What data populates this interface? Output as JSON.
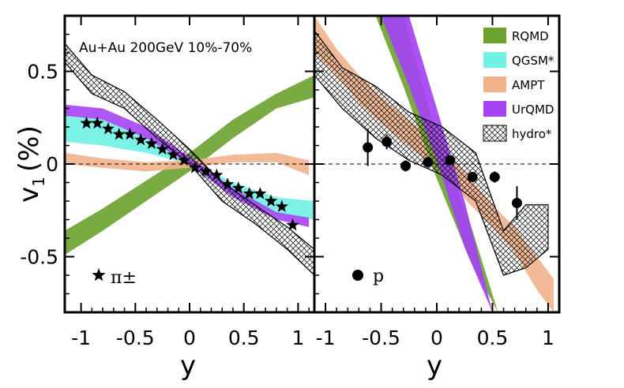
{
  "chart_data": [
    {
      "type": "line",
      "panel": "left",
      "annotation": "Au+Au 200GeV 10%-70%",
      "ylabel": "v",
      "ylabel_sub": "1",
      "ylabel_unit": "(%)",
      "xlabel": "y",
      "xlim": [
        -1.15,
        1.15
      ],
      "ylim": [
        -0.8,
        0.8
      ],
      "x_ticks": [
        "-1",
        "-0.5",
        "0",
        "0.5",
        "1"
      ],
      "y_ticks": [
        "0.5",
        "0",
        "-0.5"
      ],
      "marker_label": "π±",
      "series": [
        {
          "name": "RQMD",
          "kind": "band",
          "color": "#6aa22e",
          "x": [
            -1.15,
            -0.8,
            -0.4,
            0,
            0.4,
            0.8,
            1.15
          ],
          "lower": [
            -0.49,
            -0.36,
            -0.2,
            -0.04,
            0.14,
            0.3,
            0.36
          ],
          "upper": [
            -0.36,
            -0.24,
            -0.09,
            0.06,
            0.24,
            0.38,
            0.48
          ]
        },
        {
          "name": "QGSM*",
          "kind": "band",
          "color": "#6ff2e4",
          "x": [
            -1.15,
            -0.8,
            -0.4,
            0,
            0.4,
            0.8,
            1.15
          ],
          "lower": [
            0.12,
            0.1,
            0.06,
            0.0,
            -0.16,
            -0.27,
            -0.3
          ],
          "upper": [
            0.26,
            0.24,
            0.14,
            0.02,
            -0.1,
            -0.18,
            -0.2
          ]
        },
        {
          "name": "AMPT",
          "kind": "band",
          "color": "#f2b28c",
          "x": [
            -1.15,
            -0.8,
            -0.4,
            0,
            0.4,
            0.8,
            1.1
          ],
          "lower": [
            0.0,
            -0.02,
            -0.04,
            -0.02,
            0.01,
            0.01,
            -0.06
          ],
          "upper": [
            0.06,
            0.03,
            0.01,
            0.02,
            0.05,
            0.06,
            0.02
          ]
        },
        {
          "name": "UrQMD",
          "kind": "band",
          "color": "#a442f4",
          "x": [
            -1.15,
            -0.8,
            -0.4,
            0,
            0.4,
            0.8,
            1.1
          ],
          "lower": [
            0.26,
            0.24,
            0.14,
            0.0,
            -0.18,
            -0.3,
            -0.34
          ],
          "upper": [
            0.32,
            0.3,
            0.2,
            0.04,
            -0.13,
            -0.26,
            -0.29
          ]
        },
        {
          "name": "hydro*",
          "kind": "hatched",
          "color": "#000000",
          "x": [
            -1.15,
            -0.9,
            -0.6,
            -0.3,
            0,
            0.3,
            0.6,
            0.9,
            1.15
          ],
          "lower": [
            0.55,
            0.38,
            0.3,
            0.14,
            0.0,
            -0.2,
            -0.32,
            -0.46,
            -0.6
          ],
          "upper": [
            0.65,
            0.48,
            0.39,
            0.24,
            0.08,
            -0.1,
            -0.22,
            -0.34,
            -0.46
          ]
        },
        {
          "name": "pi",
          "kind": "stars",
          "color": "#000000",
          "x": [
            -0.95,
            -0.85,
            -0.75,
            -0.65,
            -0.55,
            -0.45,
            -0.35,
            -0.25,
            -0.15,
            -0.05,
            0.05,
            0.15,
            0.25,
            0.35,
            0.45,
            0.55,
            0.65,
            0.75,
            0.85,
            0.95
          ],
          "y": [
            0.22,
            0.22,
            0.19,
            0.16,
            0.16,
            0.13,
            0.11,
            0.08,
            0.05,
            0.02,
            -0.02,
            -0.04,
            -0.06,
            -0.11,
            -0.13,
            -0.16,
            -0.16,
            -0.2,
            -0.23,
            -0.33
          ]
        }
      ]
    },
    {
      "type": "line",
      "panel": "right",
      "xlabel": "y",
      "xlim": [
        -1.1,
        1.1
      ],
      "ylim": [
        -0.8,
        0.8
      ],
      "x_ticks": [
        "-1",
        "-0.5",
        "0",
        "0.5",
        "1"
      ],
      "legend": [
        "RQMD",
        "QGSM*",
        "AMPT",
        "UrQMD",
        "hydro*"
      ],
      "marker_label": "p",
      "series": [
        {
          "name": "AMPT",
          "kind": "band",
          "color": "#f2b28c",
          "x": [
            -1.1,
            -0.9,
            -0.7,
            -0.5,
            -0.3,
            -0.1,
            0.1,
            0.3,
            0.5,
            0.7,
            0.9,
            1.05
          ],
          "lower": [
            0.6,
            0.48,
            0.33,
            0.22,
            0.12,
            0.02,
            -0.08,
            -0.22,
            -0.34,
            -0.48,
            -0.68,
            -0.8
          ],
          "upper": [
            0.8,
            0.62,
            0.48,
            0.36,
            0.26,
            0.16,
            0.06,
            -0.08,
            -0.22,
            -0.34,
            -0.5,
            -0.62
          ]
        },
        {
          "name": "RQMD",
          "kind": "band",
          "color": "#6aa22e",
          "x": [
            -0.55,
            -0.3,
            0,
            0.3,
            0.55
          ],
          "lower": [
            0.8,
            0.42,
            -0.08,
            -0.52,
            -0.8
          ],
          "upper": [
            0.8,
            0.8,
            0.14,
            -0.32,
            -0.8
          ]
        },
        {
          "name": "UrQMD",
          "kind": "band",
          "color": "#a442f4",
          "x": [
            -0.5,
            -0.25,
            0,
            0.25,
            0.5
          ],
          "lower": [
            0.8,
            0.42,
            0.02,
            -0.45,
            -0.8
          ],
          "upper": [
            0.8,
            0.8,
            0.3,
            -0.2,
            -0.8
          ]
        },
        {
          "name": "hydro*",
          "kind": "hatched",
          "color": "#000000",
          "x": [
            -1.1,
            -0.85,
            -0.55,
            -0.25,
            0.05,
            0.35,
            0.6,
            0.8,
            1.0
          ],
          "lower": [
            0.48,
            0.3,
            0.14,
            0.02,
            -0.06,
            -0.2,
            -0.6,
            -0.56,
            -0.46
          ],
          "upper": [
            0.72,
            0.52,
            0.42,
            0.28,
            0.2,
            0.06,
            -0.36,
            -0.22,
            -0.22
          ]
        },
        {
          "name": "p",
          "kind": "points",
          "color": "#000000",
          "x": [
            -0.62,
            -0.45,
            -0.28,
            -0.08,
            0.12,
            0.32,
            0.52,
            0.72
          ],
          "y": [
            0.09,
            0.12,
            -0.01,
            0.01,
            0.02,
            -0.07,
            -0.07,
            -0.21
          ],
          "err": [
            0.1,
            0.04,
            0.03,
            0.02,
            0.02,
            0.02,
            0.03,
            0.09
          ]
        }
      ]
    }
  ]
}
